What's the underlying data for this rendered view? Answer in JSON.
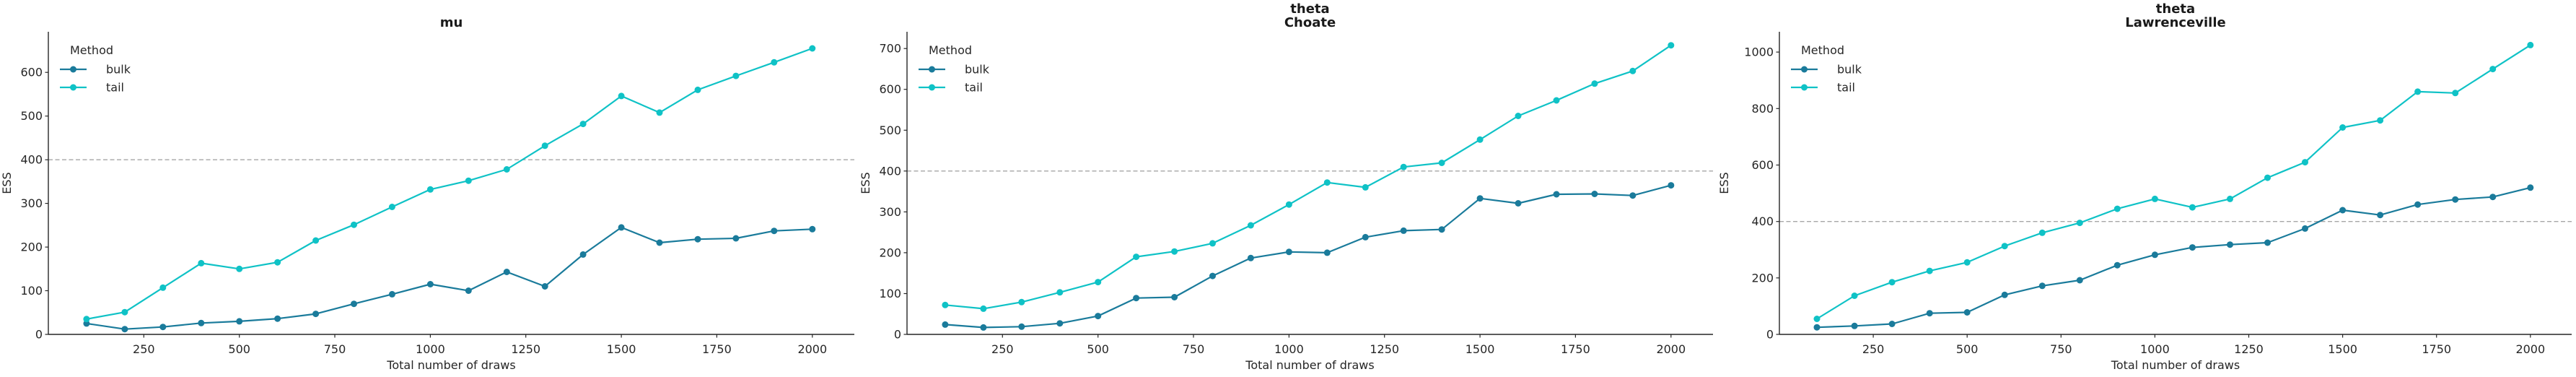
{
  "figure": {
    "colors": {
      "bulk": "#1A7B9B",
      "tail": "#0FC2C6",
      "refline": "#A6A6A6",
      "spine": "#262626",
      "text": "#262626"
    }
  },
  "chart_data": [
    {
      "type": "line",
      "title_lines": [
        "mu"
      ],
      "xlabel": "Total number of draws",
      "ylabel": "ESS",
      "legend_title": "Method",
      "legend_position": "top-left",
      "grid": false,
      "refline_y": 400,
      "x": [
        100,
        200,
        300,
        400,
        500,
        600,
        700,
        800,
        900,
        1000,
        1100,
        1200,
        1300,
        1400,
        1500,
        1600,
        1700,
        1800,
        1900,
        2000
      ],
      "series": [
        {
          "name": "bulk",
          "color": "#1A7B9B",
          "values": [
            25,
            12,
            17,
            26,
            30,
            36,
            47,
            70,
            92,
            115,
            100,
            143,
            110,
            183,
            245,
            210,
            218,
            220,
            237,
            241
          ]
        },
        {
          "name": "tail",
          "color": "#0FC2C6",
          "values": [
            35,
            51,
            107,
            163,
            150,
            165,
            215,
            251,
            292,
            332,
            352,
            378,
            432,
            482,
            546,
            508,
            560,
            592,
            623,
            655
          ]
        }
      ],
      "xticks": [
        250,
        500,
        750,
        1000,
        1250,
        1500,
        1750,
        2000
      ],
      "yticks": [
        0,
        100,
        200,
        300,
        400,
        500,
        600
      ],
      "xlim": [
        0,
        2110
      ],
      "ylim": [
        0,
        693
      ]
    },
    {
      "type": "line",
      "title_lines": [
        "theta",
        "Choate"
      ],
      "xlabel": "Total number of draws",
      "ylabel": "ESS",
      "legend_title": "Method",
      "legend_position": "top-left",
      "grid": false,
      "refline_y": 400,
      "x": [
        100,
        200,
        300,
        400,
        500,
        600,
        700,
        800,
        900,
        1000,
        1100,
        1200,
        1300,
        1400,
        1500,
        1600,
        1700,
        1800,
        1900,
        2000
      ],
      "series": [
        {
          "name": "bulk",
          "color": "#1A7B9B",
          "values": [
            24,
            17,
            19,
            27,
            45,
            89,
            91,
            143,
            187,
            202,
            200,
            238,
            254,
            257,
            333,
            321,
            343,
            344,
            340,
            365
          ]
        },
        {
          "name": "tail",
          "color": "#0FC2C6",
          "values": [
            72,
            63,
            79,
            103,
            128,
            190,
            203,
            223,
            267,
            318,
            372,
            360,
            410,
            420,
            477,
            535,
            573,
            614,
            645,
            708
          ]
        }
      ],
      "xticks": [
        250,
        500,
        750,
        1000,
        1250,
        1500,
        1750,
        2000
      ],
      "yticks": [
        0,
        100,
        200,
        300,
        400,
        500,
        600,
        700
      ],
      "xlim": [
        0,
        2110
      ],
      "ylim": [
        0,
        741
      ]
    },
    {
      "type": "line",
      "title_lines": [
        "theta",
        "Lawrenceville"
      ],
      "xlabel": "Total number of draws",
      "ylabel": "ESS",
      "legend_title": "Method",
      "legend_position": "top-left",
      "grid": false,
      "refline_y": 400,
      "x": [
        100,
        200,
        300,
        400,
        500,
        600,
        700,
        800,
        900,
        1000,
        1100,
        1200,
        1300,
        1400,
        1500,
        1600,
        1700,
        1800,
        1900,
        2000
      ],
      "series": [
        {
          "name": "bulk",
          "color": "#1A7B9B",
          "values": [
            25,
            30,
            37,
            75,
            78,
            140,
            172,
            192,
            245,
            282,
            308,
            318,
            325,
            375,
            440,
            423,
            460,
            478,
            487,
            520
          ]
        },
        {
          "name": "tail",
          "color": "#0FC2C6",
          "values": [
            55,
            137,
            185,
            225,
            255,
            313,
            360,
            395,
            445,
            480,
            450,
            480,
            555,
            610,
            733,
            758,
            860,
            855,
            940,
            1025
          ]
        }
      ],
      "xticks": [
        250,
        500,
        750,
        1000,
        1250,
        1500,
        1750,
        2000
      ],
      "yticks": [
        0,
        200,
        400,
        600,
        800,
        1000
      ],
      "xlim": [
        0,
        2110
      ],
      "ylim": [
        0,
        1072
      ]
    }
  ]
}
